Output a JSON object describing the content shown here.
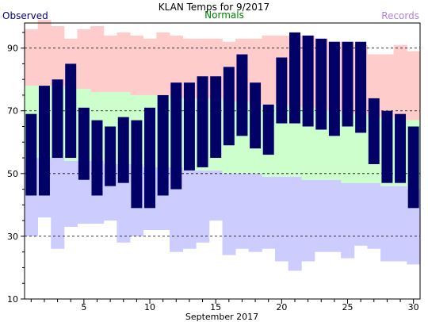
{
  "chart_data": {
    "type": "bar",
    "title": "KLAN Temps for 9/2017",
    "xlabel": "September 2017",
    "ylabel": "",
    "legend": [
      {
        "label": "Observed",
        "color": "#000080",
        "position": "top-left"
      },
      {
        "label": "Normals",
        "color": "#008000",
        "position": "top-center"
      },
      {
        "label": "Records",
        "color": "#b57edc",
        "position": "top-right"
      }
    ],
    "colors": {
      "observed": "#000066",
      "normals": "#ccffcc",
      "record_high_band": "#ffcccc",
      "record_low_band": "#ccccff"
    },
    "xlim": [
      0.5,
      30.5
    ],
    "ylim": [
      10,
      98
    ],
    "x_ticks": [
      5,
      10,
      15,
      20,
      25,
      30
    ],
    "y_ticks": [
      10,
      30,
      50,
      70,
      90
    ],
    "grid": {
      "dashed_y": [
        30,
        50,
        70,
        90
      ]
    },
    "days": [
      1,
      2,
      3,
      4,
      5,
      6,
      7,
      8,
      9,
      10,
      11,
      12,
      13,
      14,
      15,
      16,
      17,
      18,
      19,
      20,
      21,
      22,
      23,
      24,
      25,
      26,
      27,
      28,
      29,
      30
    ],
    "observed_high": [
      69,
      78,
      80,
      85,
      71,
      67,
      65,
      68,
      67,
      71,
      75,
      79,
      79,
      81,
      81,
      84,
      88,
      79,
      72,
      87,
      95,
      94,
      93,
      92,
      92,
      92,
      74,
      70,
      69,
      65
    ],
    "observed_low": [
      43,
      43,
      55,
      55,
      48,
      43,
      46,
      47,
      39,
      39,
      43,
      45,
      51,
      52,
      55,
      59,
      62,
      58,
      56,
      66,
      66,
      65,
      64,
      62,
      65,
      63,
      53,
      47,
      47,
      39
    ],
    "normal_high": [
      78,
      78,
      78,
      77,
      77,
      76,
      76,
      76,
      75,
      75,
      75,
      74,
      74,
      74,
      74,
      73,
      73,
      72,
      72,
      72,
      71,
      71,
      70,
      70,
      69,
      69,
      68,
      68,
      67,
      67
    ],
    "normal_low": [
      55,
      55,
      55,
      54,
      54,
      54,
      53,
      53,
      53,
      52,
      52,
      52,
      51,
      51,
      51,
      50,
      50,
      50,
      49,
      49,
      49,
      48,
      48,
      48,
      47,
      47,
      47,
      46,
      46,
      45
    ],
    "record_high": [
      96,
      99,
      97,
      93,
      96,
      97,
      94,
      95,
      94,
      93,
      95,
      94,
      93,
      93,
      93,
      92,
      93,
      93,
      94,
      94,
      94,
      94,
      93,
      92,
      92,
      91,
      88,
      88,
      91,
      89
    ],
    "record_low": [
      30,
      36,
      26,
      33,
      34,
      34,
      35,
      28,
      30,
      32,
      32,
      25,
      26,
      28,
      35,
      24,
      26,
      25,
      26,
      22,
      19,
      22,
      25,
      25,
      23,
      27,
      26,
      22,
      22,
      21
    ]
  }
}
